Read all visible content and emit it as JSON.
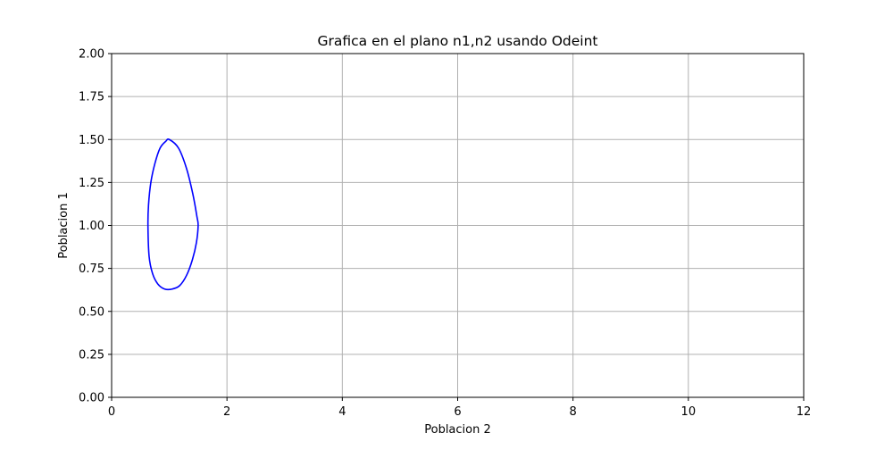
{
  "chart_data": {
    "type": "line",
    "title": "Grafica en el plano n1,n2 usando Odeint",
    "xlabel": "Poblacion 2",
    "ylabel": "Poblacion 1",
    "xlim": [
      0,
      12
    ],
    "ylim": [
      0,
      2
    ],
    "x_ticks": [
      0,
      2,
      4,
      6,
      8,
      10,
      12
    ],
    "x_tick_labels": [
      "0",
      "2",
      "4",
      "6",
      "8",
      "10",
      "12"
    ],
    "y_ticks": [
      0,
      0.25,
      0.5,
      0.75,
      1.0,
      1.25,
      1.5,
      1.75,
      2.0
    ],
    "y_tick_labels": [
      "0.00",
      "0.25",
      "0.50",
      "0.75",
      "1.00",
      "1.25",
      "1.50",
      "1.75",
      "2.00"
    ],
    "grid": true,
    "series": [
      {
        "color": "#0000ff",
        "x": [
          1.0,
          1.16,
          1.3,
          1.41,
          1.48,
          1.5,
          1.47,
          1.4,
          1.3,
          1.18,
          1.05,
          0.92,
          0.8,
          0.71,
          0.65,
          0.63,
          0.64,
          0.68,
          0.75,
          0.84,
          0.94,
          1.0
        ],
        "y": [
          1.5,
          1.45,
          1.33,
          1.18,
          1.05,
          1.0,
          0.9,
          0.8,
          0.71,
          0.65,
          0.63,
          0.63,
          0.66,
          0.72,
          0.82,
          1.0,
          1.12,
          1.25,
          1.36,
          1.45,
          1.49,
          1.5
        ]
      }
    ]
  }
}
